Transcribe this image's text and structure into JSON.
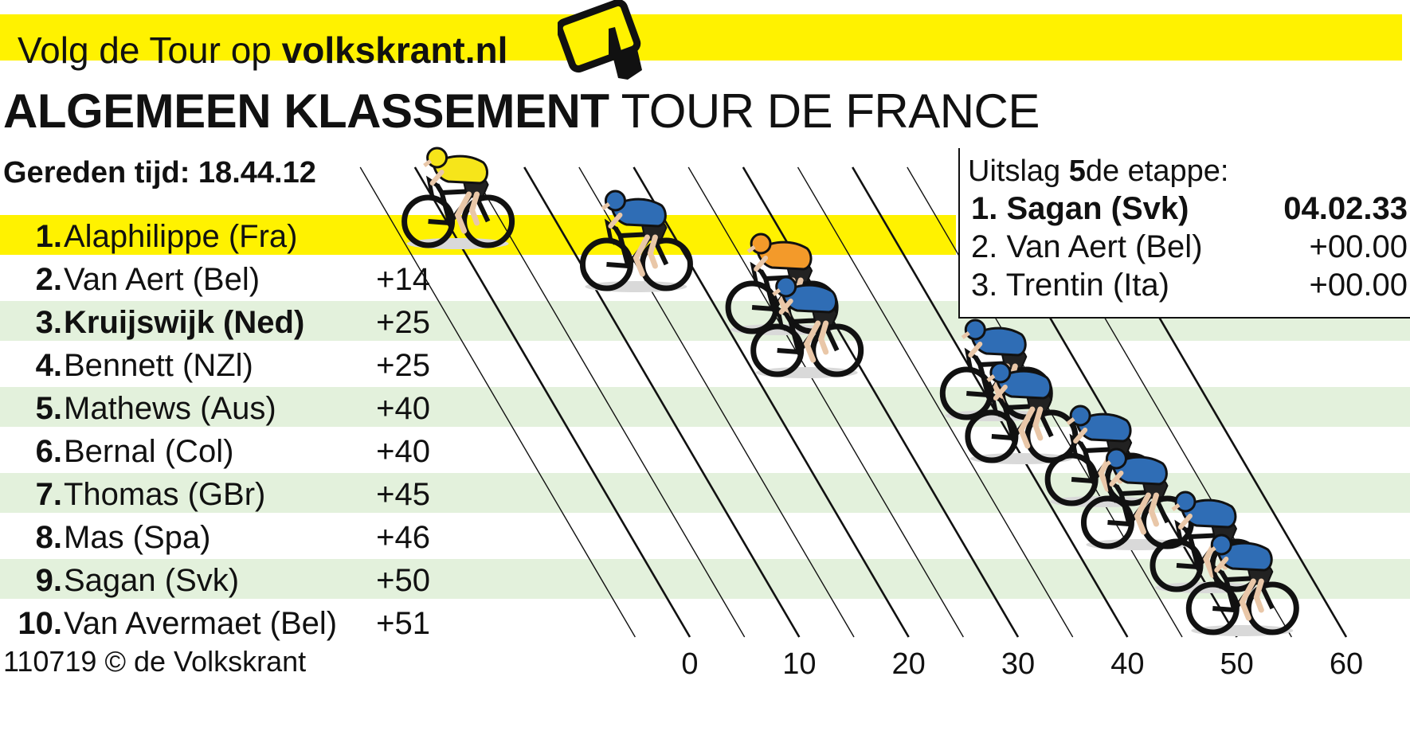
{
  "banner": {
    "prefix": "Volg de Tour op ",
    "site": "volkskrant.nl",
    "icon": "tablet-tap-icon",
    "color": "#fff200"
  },
  "title": {
    "strong": "ALGEMEEN KLASSEMENT",
    "light": "TOUR DE FRANCE"
  },
  "time_label": "Gereden tijd: 18.44.12",
  "credit": "110719 © de Volkskrant",
  "colors": {
    "leader_band": "#fff200",
    "alt_band": "#e3f1dc",
    "yellow_jersey": "#f6e51a",
    "orange_jersey": "#f39a2a",
    "blue_jersey": "#2f6db5"
  },
  "stage_result": {
    "title_prefix": "Uitslag ",
    "title_number": "5",
    "title_suffix": "de etappe:",
    "rows": [
      {
        "name": "1. Sagan (Svk)",
        "time": "04.02.33"
      },
      {
        "name": "2. Van Aert (Bel)",
        "time": "+00.00"
      },
      {
        "name": "3. Trentin (Ita)",
        "time": "+00.00"
      }
    ]
  },
  "chart_data": {
    "type": "table",
    "title": "ALGEMEEN KLASSEMENT TOUR DE FRANCE",
    "xlabel": "",
    "xlim": [
      0,
      60
    ],
    "x_ticks": [
      "0",
      "10",
      "20",
      "30",
      "40",
      "50",
      "60"
    ],
    "rows": [
      {
        "rank": "1.",
        "rider": "Alaphilippe (Fra)",
        "gap_label": "",
        "gap_seconds": 0,
        "jersey": "yellow"
      },
      {
        "rank": "2.",
        "rider": "Van Aert  (Bel)",
        "gap_label": "+14",
        "gap_seconds": 14,
        "jersey": "blue"
      },
      {
        "rank": "3.",
        "rider": "Kruijswijk (Ned)",
        "gap_label": "+25",
        "gap_seconds": 25,
        "jersey": "orange",
        "highlight": true
      },
      {
        "rank": "4.",
        "rider": "Bennett (NZl)",
        "gap_label": "+25",
        "gap_seconds": 25,
        "jersey": "blue"
      },
      {
        "rank": "5.",
        "rider": "Mathews (Aus)",
        "gap_label": "+40",
        "gap_seconds": 40,
        "jersey": "blue"
      },
      {
        "rank": "6.",
        "rider": "Bernal (Col)",
        "gap_label": "+40",
        "gap_seconds": 40,
        "jersey": "blue"
      },
      {
        "rank": "7.",
        "rider": "Thomas (GBr)",
        "gap_label": "+45",
        "gap_seconds": 45,
        "jersey": "blue"
      },
      {
        "rank": "8.",
        "rider": "Mas (Spa)",
        "gap_label": "+46",
        "gap_seconds": 46,
        "jersey": "blue"
      },
      {
        "rank": "9.",
        "rider": "Sagan (Svk)",
        "gap_label": "+50",
        "gap_seconds": 50,
        "jersey": "blue"
      },
      {
        "rank": "10.",
        "rider": "Van Avermaet (Bel)",
        "gap_label": "+51",
        "gap_seconds": 51,
        "jersey": "blue"
      }
    ]
  }
}
